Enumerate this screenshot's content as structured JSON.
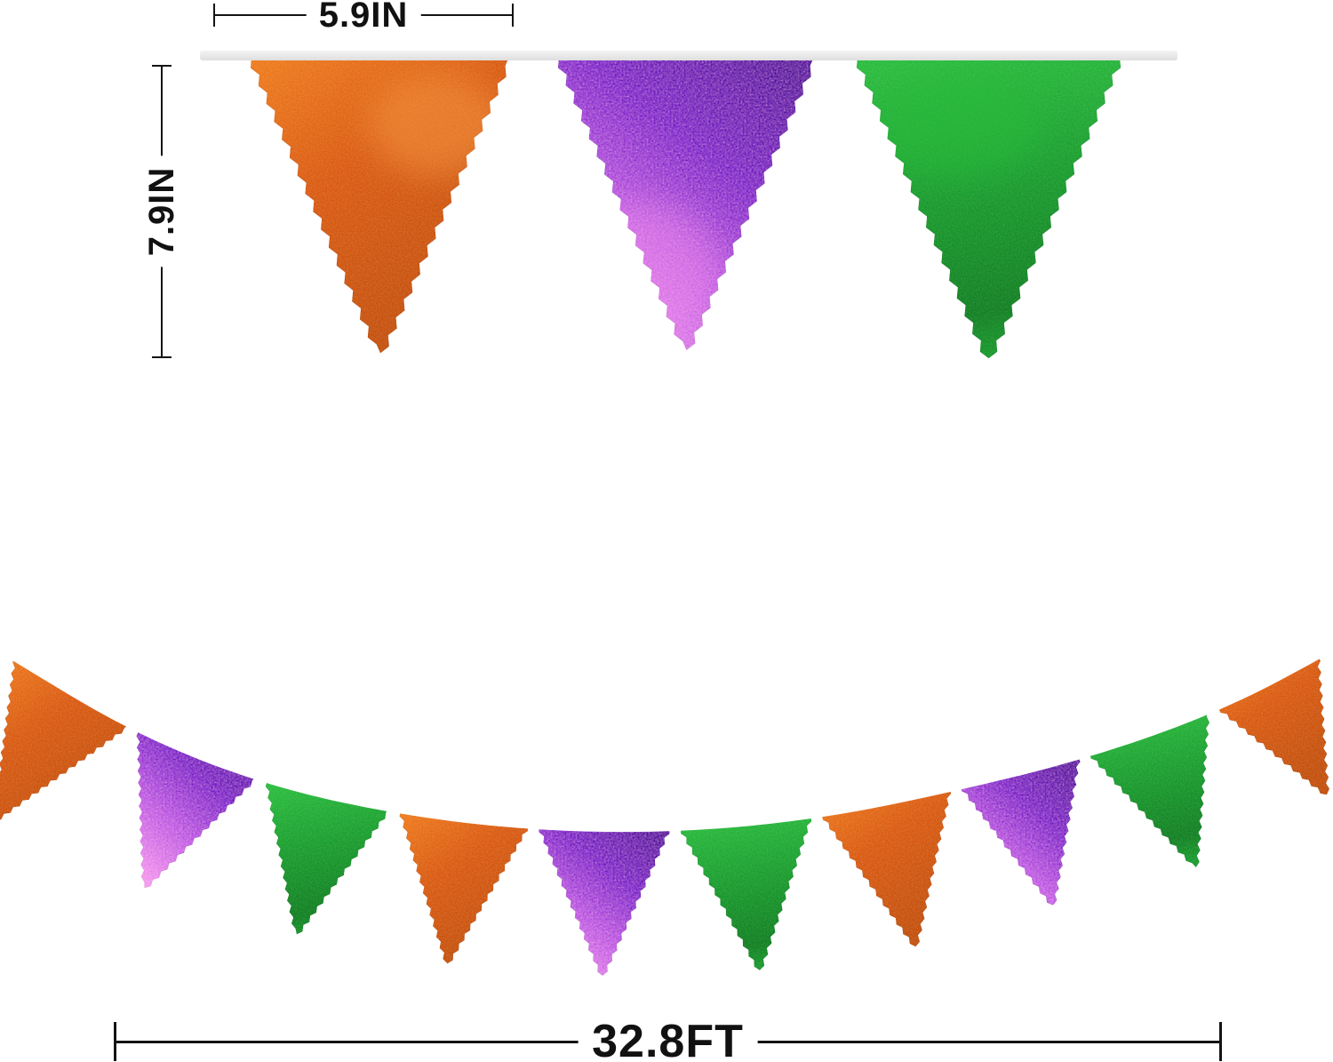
{
  "title": "Metallic pennant banner size diagram",
  "dimensions": {
    "flag_width": "5.9IN",
    "flag_height": "7.9IN",
    "total_length": "32.8FT"
  },
  "colors": {
    "orange": {
      "light": "#f07a18",
      "base": "#d9570c",
      "dark": "#c24c07",
      "sheen": "#f79a45"
    },
    "purple": {
      "deep": "#45088f",
      "violet": "#6d15c0",
      "orchid": "#b44ade",
      "pink": "#f490ec"
    },
    "green": {
      "bright": "#27bb3b",
      "base": "#169a2a",
      "deep": "#0e7e1f"
    },
    "ribbon": "#e9e9e9",
    "string": "#ffffff",
    "dimension_lines": "#141414"
  },
  "top_row": {
    "flag_colors": [
      "orange",
      "purple",
      "green"
    ]
  },
  "garland": {
    "flag_colors": [
      "orange",
      "purple",
      "green",
      "orange",
      "purple",
      "green",
      "orange",
      "purple",
      "green",
      "orange"
    ]
  }
}
